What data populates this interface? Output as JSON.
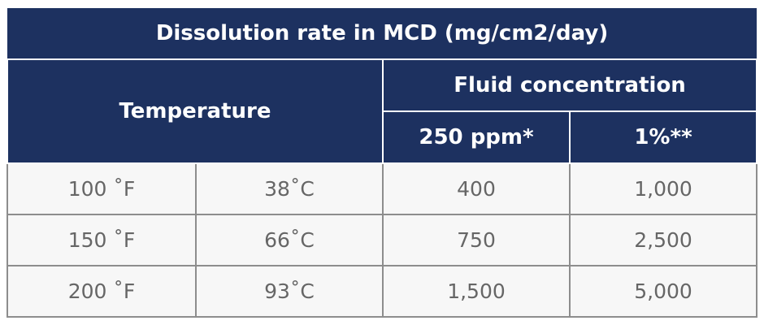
{
  "title": "Dissolution rate in MCD (mg/cm2/day)",
  "header": {
    "temperature": "Temperature",
    "group": "Fluid concentration",
    "columns": [
      "250 ppm*",
      "1%**"
    ]
  },
  "table": {
    "rows": [
      [
        "100 ˚F",
        "38˚C",
        "400",
        "1,000"
      ],
      [
        "150 ˚F",
        "66˚C",
        "750",
        "2,500"
      ],
      [
        "200 ˚F",
        "93˚C",
        "1,500",
        "5,000"
      ]
    ]
  }
}
